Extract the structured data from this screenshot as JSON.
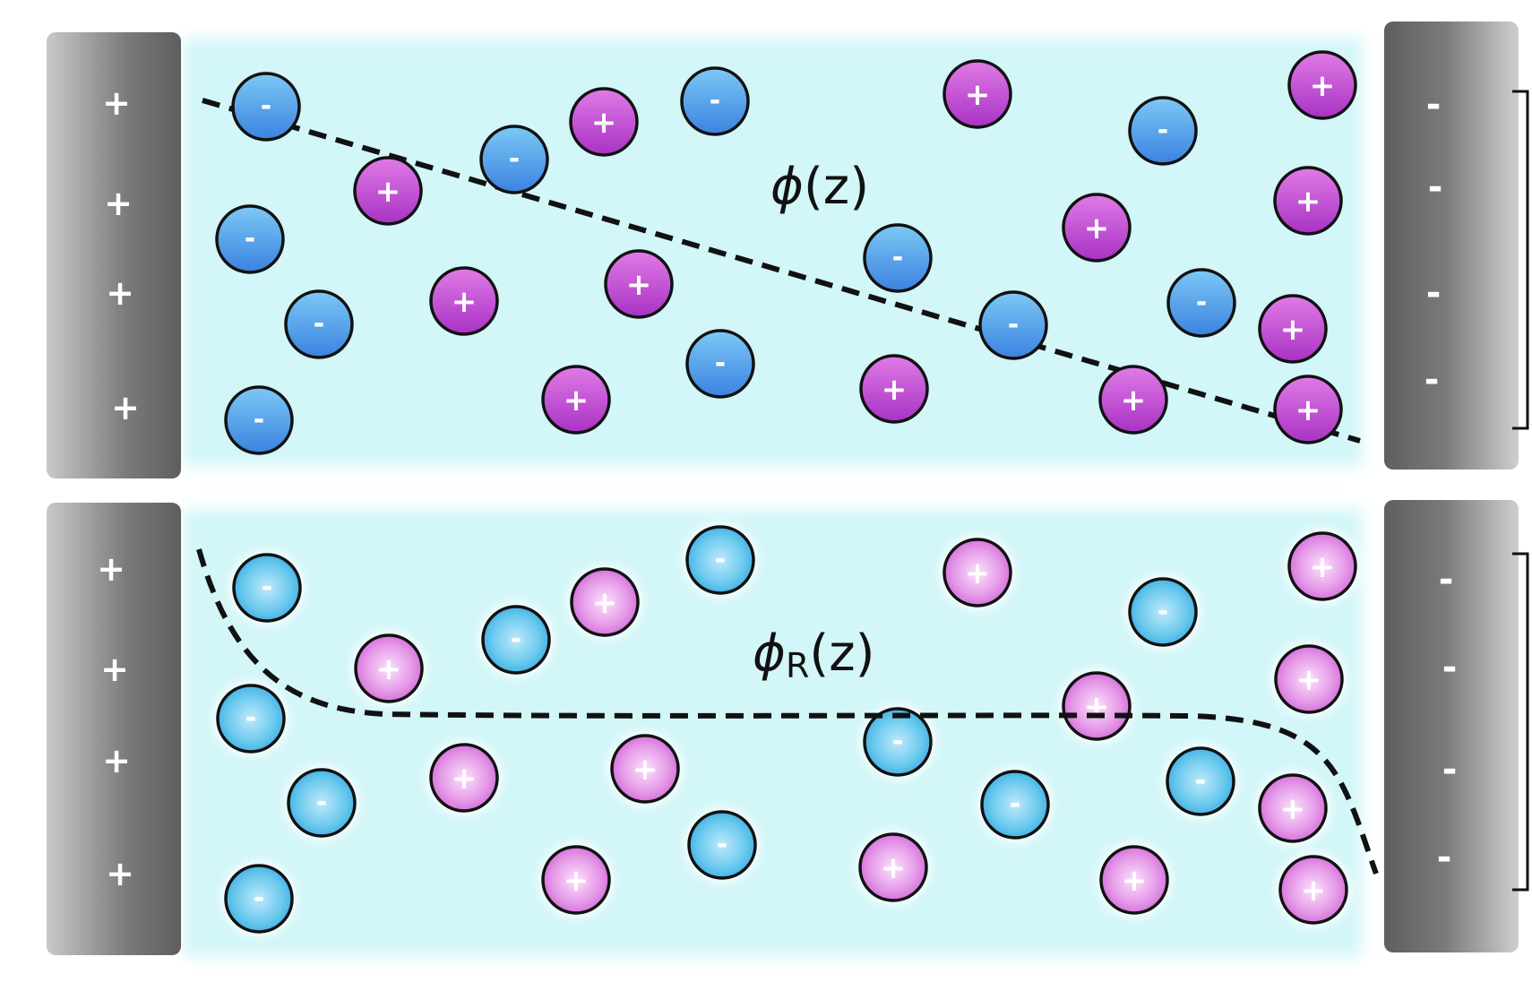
{
  "colors": {
    "electrolyte": "#d3f6f8",
    "plate": "#8a8a8a",
    "anion": "#4a9fe8",
    "cation": "#c44ad0",
    "anion_soft": "#6fc4ee",
    "cation_soft": "#e68ae8",
    "line": "#111111"
  },
  "panels": [
    {
      "id": "top",
      "potential_symbol": "ϕ",
      "potential_sub": "",
      "potential_arg": "(z)",
      "left_plate_sign": "+",
      "right_plate_sign": "-",
      "ion_style": "solid",
      "profile": "linear"
    },
    {
      "id": "bottom",
      "potential_symbol": "ϕ",
      "potential_sub": "R",
      "potential_arg": "(z)",
      "left_plate_sign": "+",
      "right_plate_sign": "-",
      "ion_style": "soft",
      "profile": "screened"
    }
  ],
  "ion_symbols": {
    "cation": "+",
    "anion": "-"
  }
}
